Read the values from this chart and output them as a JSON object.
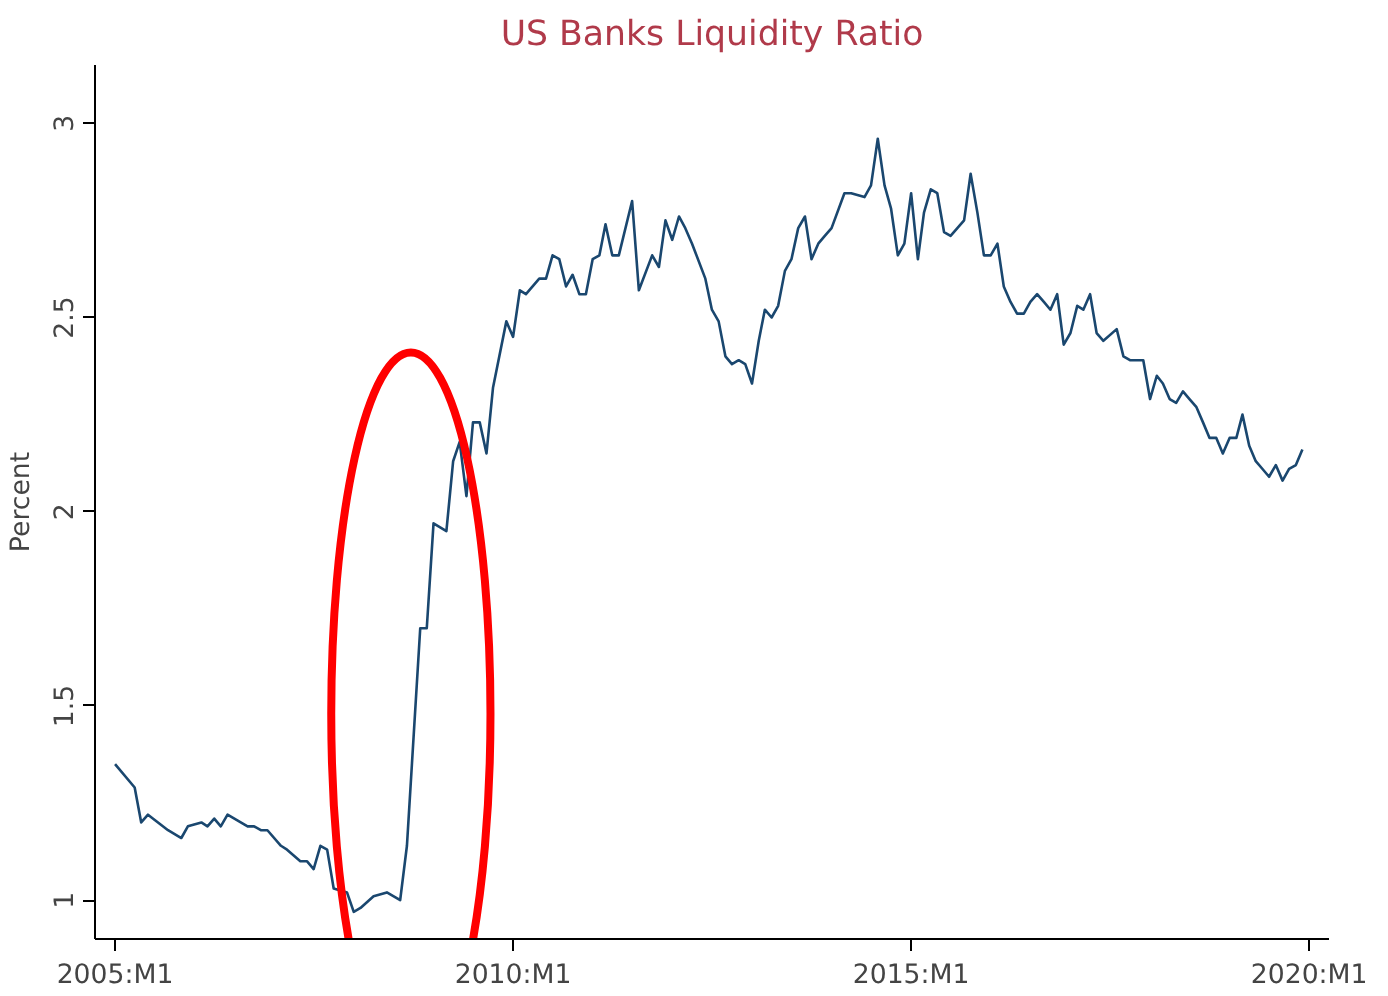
{
  "chart_data": {
    "type": "line",
    "title": "US Banks Liquidity Ratio",
    "ylabel": "Percent",
    "x": [
      "2005-01",
      "2005-04",
      "2005-05",
      "2005-06",
      "2005-09",
      "2005-11",
      "2005-12",
      "2006-02",
      "2006-03",
      "2006-04",
      "2006-05",
      "2006-06",
      "2006-09",
      "2006-10",
      "2006-11",
      "2006-12",
      "2007-02",
      "2007-03",
      "2007-05",
      "2007-06",
      "2007-07",
      "2007-08",
      "2007-09",
      "2007-10",
      "2007-12",
      "2008-01",
      "2008-02",
      "2008-04",
      "2008-06",
      "2008-08",
      "2008-09",
      "2008-11",
      "2008-12",
      "2009-01",
      "2009-03",
      "2009-04",
      "2009-05",
      "2009-06",
      "2009-07",
      "2009-08",
      "2009-09",
      "2009-10",
      "2009-12",
      "2010-01",
      "2010-02",
      "2010-03",
      "2010-05",
      "2010-06",
      "2010-07",
      "2010-08",
      "2010-09",
      "2010-10",
      "2010-11",
      "2010-12",
      "2011-01",
      "2011-02",
      "2011-03",
      "2011-04",
      "2011-05",
      "2011-07",
      "2011-08",
      "2011-10",
      "2011-11",
      "2011-12",
      "2012-01",
      "2012-02",
      "2012-03",
      "2012-04",
      "2012-06",
      "2012-07",
      "2012-08",
      "2012-09",
      "2012-10",
      "2012-11",
      "2012-12",
      "2013-01",
      "2013-02",
      "2013-03",
      "2013-04",
      "2013-05",
      "2013-06",
      "2013-07",
      "2013-08",
      "2013-09",
      "2013-10",
      "2013-11",
      "2013-12",
      "2014-01",
      "2014-03",
      "2014-04",
      "2014-06",
      "2014-07",
      "2014-08",
      "2014-09",
      "2014-10",
      "2014-11",
      "2014-12",
      "2015-01",
      "2015-02",
      "2015-03",
      "2015-04",
      "2015-05",
      "2015-06",
      "2015-07",
      "2015-08",
      "2015-09",
      "2015-10",
      "2015-11",
      "2015-12",
      "2016-01",
      "2016-02",
      "2016-03",
      "2016-04",
      "2016-05",
      "2016-06",
      "2016-07",
      "2016-08",
      "2016-09",
      "2016-10",
      "2016-11",
      "2016-12",
      "2017-01",
      "2017-02",
      "2017-03",
      "2017-04",
      "2017-05",
      "2017-06",
      "2017-08",
      "2017-09",
      "2017-10",
      "2017-12",
      "2018-01",
      "2018-02",
      "2018-03",
      "2018-04",
      "2018-05",
      "2018-06",
      "2018-07",
      "2018-08",
      "2018-09",
      "2018-10",
      "2018-11",
      "2018-12",
      "2019-01",
      "2019-02",
      "2019-03",
      "2019-04",
      "2019-05",
      "2019-06",
      "2019-07",
      "2019-08",
      "2019-09",
      "2019-10",
      "2019-11",
      "2019-12"
    ],
    "series": [
      {
        "color": "#1a476f",
        "values": [
          1.35,
          1.29,
          1.2,
          1.22,
          1.18,
          1.16,
          1.19,
          1.2,
          1.19,
          1.21,
          1.19,
          1.22,
          1.19,
          1.19,
          1.18,
          1.18,
          1.14,
          1.13,
          1.1,
          1.1,
          1.08,
          1.14,
          1.13,
          1.03,
          1.02,
          0.97,
          0.98,
          1.01,
          1.02,
          1.0,
          1.14,
          1.7,
          1.7,
          1.97,
          1.95,
          2.13,
          2.18,
          2.04,
          2.23,
          2.23,
          2.15,
          2.32,
          2.49,
          2.45,
          2.57,
          2.56,
          2.6,
          2.6,
          2.66,
          2.65,
          2.58,
          2.61,
          2.56,
          2.56,
          2.65,
          2.66,
          2.74,
          2.66,
          2.66,
          2.8,
          2.57,
          2.66,
          2.63,
          2.75,
          2.7,
          2.76,
          2.73,
          2.69,
          2.6,
          2.52,
          2.49,
          2.4,
          2.38,
          2.39,
          2.38,
          2.33,
          2.44,
          2.52,
          2.5,
          2.53,
          2.62,
          2.65,
          2.73,
          2.76,
          2.65,
          2.69,
          2.71,
          2.73,
          2.82,
          2.82,
          2.81,
          2.84,
          2.96,
          2.84,
          2.78,
          2.66,
          2.69,
          2.82,
          2.65,
          2.77,
          2.83,
          2.82,
          2.72,
          2.71,
          2.73,
          2.75,
          2.87,
          2.77,
          2.66,
          2.66,
          2.69,
          2.58,
          2.54,
          2.51,
          2.51,
          2.54,
          2.56,
          2.54,
          2.52,
          2.56,
          2.43,
          2.46,
          2.53,
          2.52,
          2.56,
          2.46,
          2.44,
          2.47,
          2.4,
          2.39,
          2.39,
          2.29,
          2.35,
          2.33,
          2.29,
          2.28,
          2.31,
          2.29,
          2.27,
          2.23,
          2.19,
          2.19,
          2.15,
          2.19,
          2.19,
          2.25,
          2.17,
          2.13,
          2.11,
          2.09,
          2.12,
          2.08,
          2.11,
          2.12,
          2.16
        ]
      }
    ],
    "xlim": [
      "2004-10",
      "2020-04"
    ],
    "xticks": [
      {
        "value": "2005-01",
        "label": "2005:M1"
      },
      {
        "value": "2010-01",
        "label": "2010:M1"
      },
      {
        "value": "2015-01",
        "label": "2015:M1"
      },
      {
        "value": "2020-01",
        "label": "2020:M1"
      }
    ],
    "ylim": [
      0.9,
      3.15
    ],
    "yticks": [
      1,
      1.5,
      2,
      2.5,
      3
    ],
    "grid": false,
    "line_style": "solid",
    "marker": "none"
  }
}
